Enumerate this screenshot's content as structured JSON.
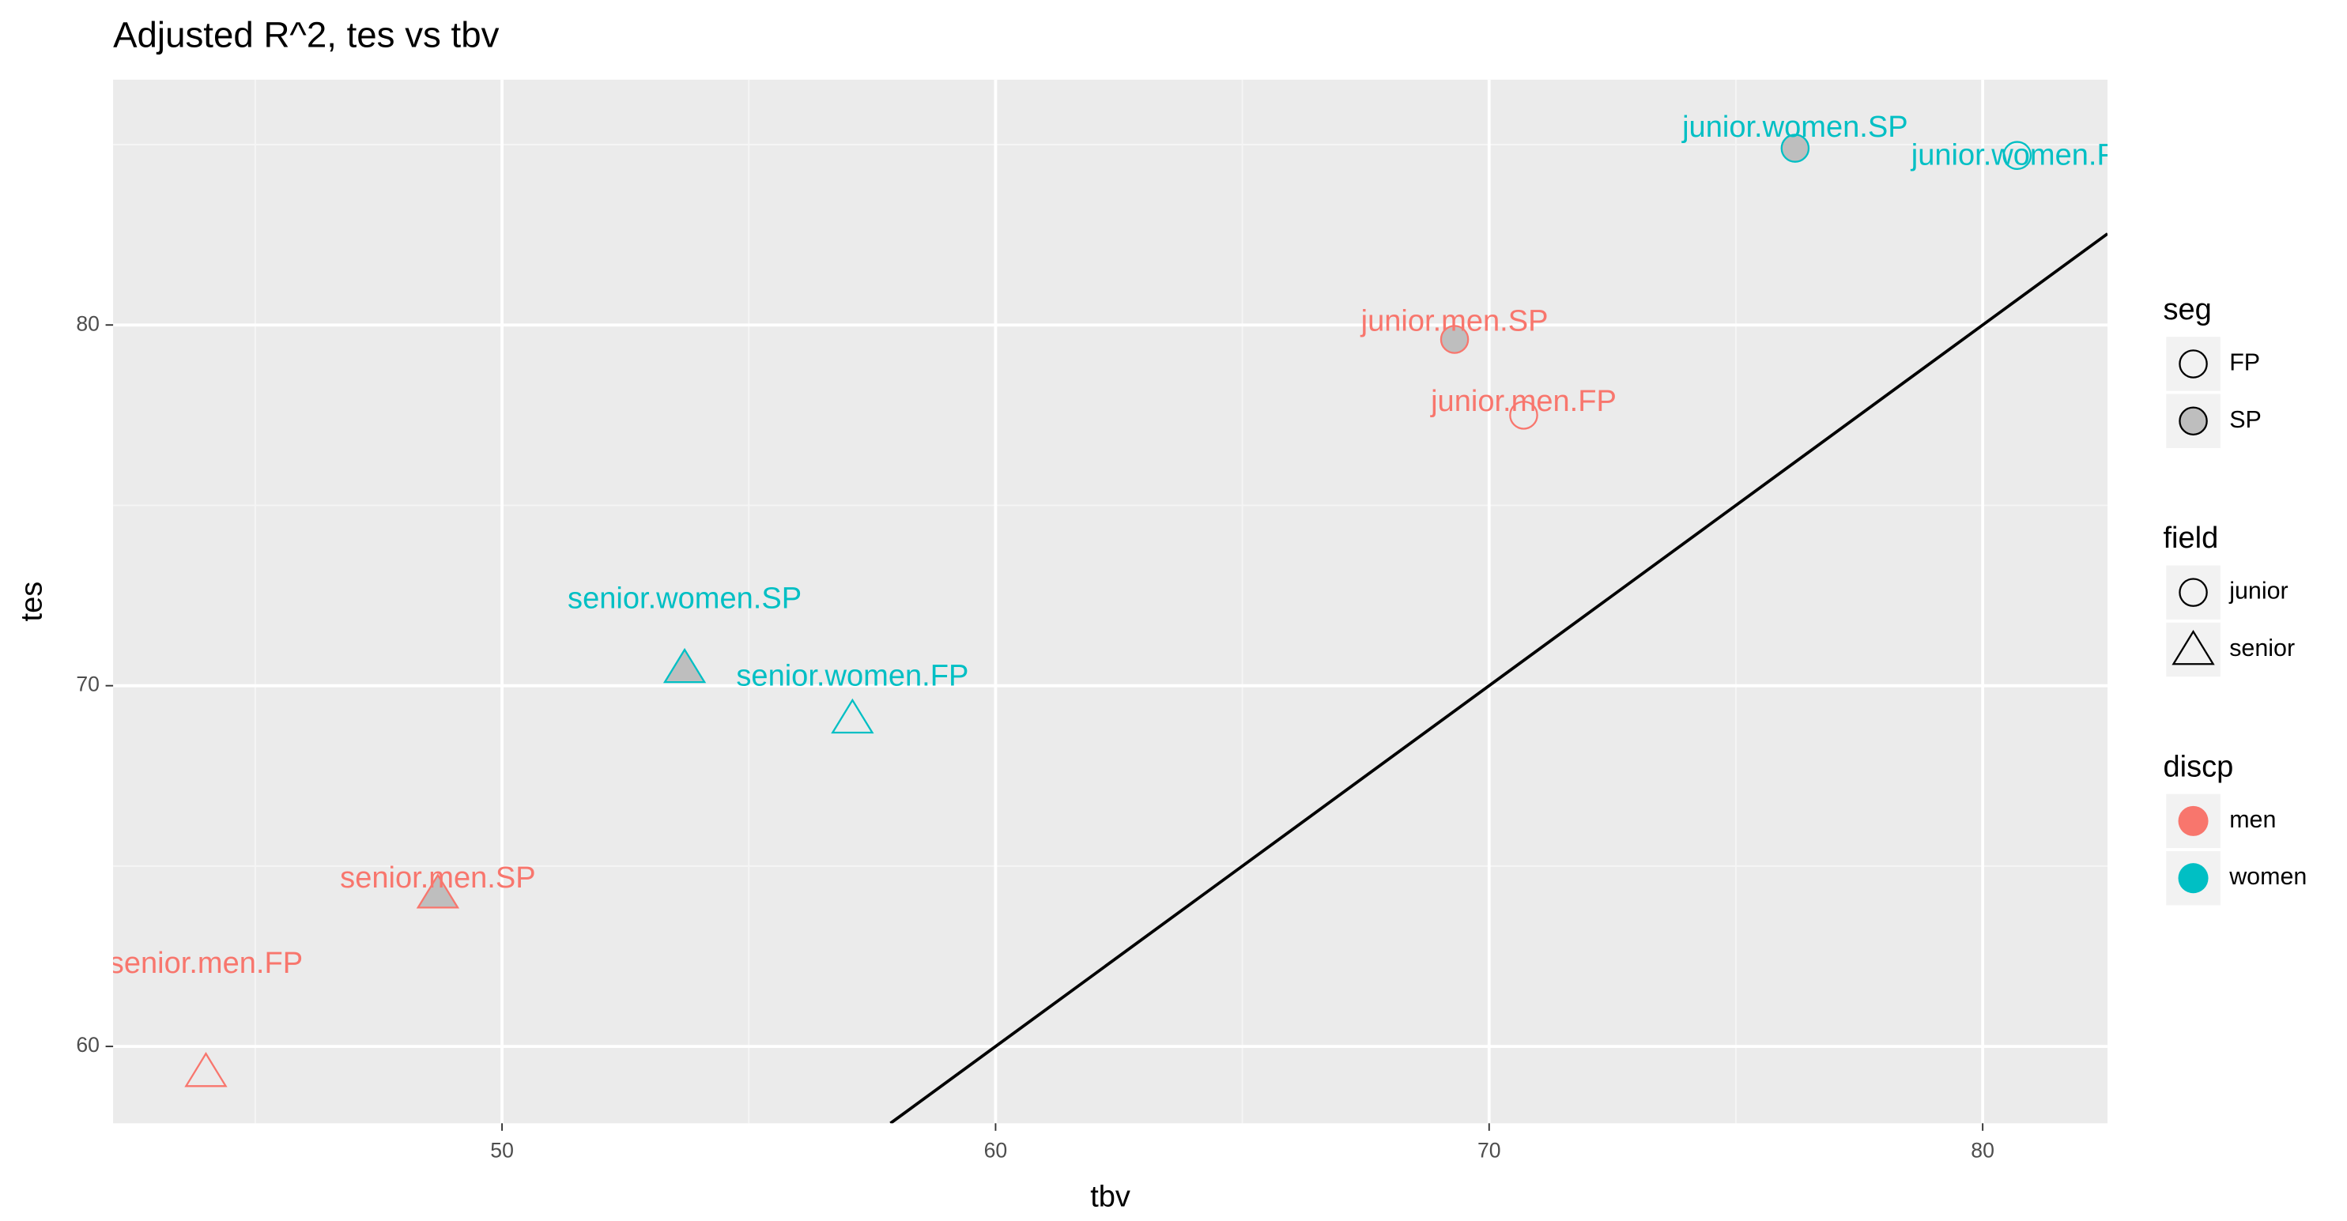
{
  "chart_data": {
    "type": "scatter",
    "title": "Adjusted R^2, tes vs tbv",
    "x_label": "tbv",
    "y_label": "tes",
    "xlim": [
      42.12,
      82.53
    ],
    "ylim": [
      57.87,
      86.8
    ],
    "xticks": [
      50,
      60,
      70,
      80
    ],
    "yticks": [
      60,
      70,
      80
    ],
    "xminor": [
      45,
      55,
      65,
      75
    ],
    "yminor": [
      65,
      75,
      85
    ],
    "grid": true,
    "abline": {
      "slope": 1,
      "intercept": 0,
      "color": "#000000"
    },
    "points": [
      {
        "label": "junior.women.SP",
        "x": 76.2,
        "y": 84.9,
        "seg": "SP",
        "field": "junior",
        "discp": "women"
      },
      {
        "label": "junior.women.FP",
        "x": 80.7,
        "y": 84.7,
        "seg": "FP",
        "field": "junior",
        "discp": "women"
      },
      {
        "label": "junior.men.SP",
        "x": 69.3,
        "y": 79.6,
        "seg": "SP",
        "field": "junior",
        "discp": "men"
      },
      {
        "label": "junior.men.FP",
        "x": 70.7,
        "y": 77.5,
        "seg": "FP",
        "field": "junior",
        "discp": "men"
      },
      {
        "label": "senior.women.SP",
        "x": 53.7,
        "y": 70.5,
        "seg": "SP",
        "field": "senior",
        "discp": "women"
      },
      {
        "label": "senior.women.FP",
        "x": 57.1,
        "y": 69.1,
        "seg": "FP",
        "field": "senior",
        "discp": "women"
      },
      {
        "label": "senior.men.SP",
        "x": 48.7,
        "y": 64.25,
        "seg": "SP",
        "field": "senior",
        "discp": "men"
      },
      {
        "label": "senior.men.FP",
        "x": 44.0,
        "y": 59.3,
        "seg": "FP",
        "field": "senior",
        "discp": "men"
      }
    ],
    "legends": [
      {
        "title": "seg",
        "entries": [
          "FP",
          "SP"
        ],
        "fills": [
          "none",
          "#bebebe"
        ]
      },
      {
        "title": "field",
        "entries": [
          "junior",
          "senior"
        ],
        "shapes": [
          "circle",
          "triangle"
        ]
      },
      {
        "title": "discp",
        "entries": [
          "men",
          "women"
        ],
        "colors": [
          "#F8766D",
          "#00BFC4"
        ]
      }
    ]
  }
}
